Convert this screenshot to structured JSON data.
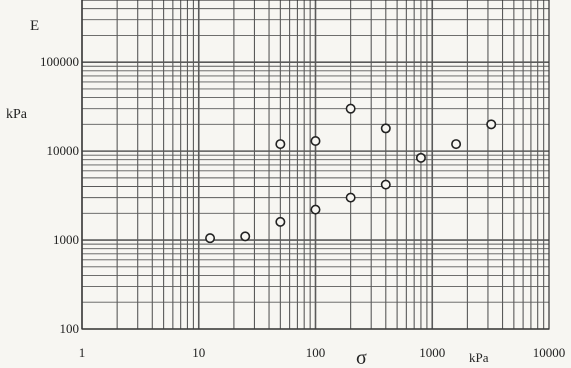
{
  "chart_data": {
    "type": "scatter",
    "title": "",
    "ylabel": "E",
    "ylabel_unit": "kPa",
    "xlabel": "σ",
    "xlabel_unit": "kPa",
    "x_scale": "log",
    "y_scale": "log",
    "xlim": [
      1,
      10000
    ],
    "ylim": [
      100,
      500000
    ],
    "x_ticks": [
      {
        "value": 1,
        "label": "1"
      },
      {
        "value": 10,
        "label": "10"
      },
      {
        "value": 100,
        "label": "100"
      },
      {
        "value": 1000,
        "label": "1000"
      },
      {
        "value": 10000,
        "label": "10000"
      }
    ],
    "y_ticks": [
      {
        "value": 100,
        "label": "100"
      },
      {
        "value": 1000,
        "label": "1000"
      },
      {
        "value": 10000,
        "label": "10000"
      },
      {
        "value": 100000,
        "label": "100000"
      }
    ],
    "grid": true,
    "marker": "open-circle",
    "series": [
      {
        "points": [
          {
            "x": 12.5,
            "y": 1050
          },
          {
            "x": 25,
            "y": 1100
          },
          {
            "x": 50,
            "y": 1600
          },
          {
            "x": 50,
            "y": 12000
          },
          {
            "x": 100,
            "y": 2200
          },
          {
            "x": 100,
            "y": 13000
          },
          {
            "x": 200,
            "y": 3000
          },
          {
            "x": 200,
            "y": 30000
          },
          {
            "x": 400,
            "y": 4200
          },
          {
            "x": 400,
            "y": 18000
          },
          {
            "x": 800,
            "y": 8400
          },
          {
            "x": 1600,
            "y": 12000
          },
          {
            "x": 3200,
            "y": 20000
          }
        ]
      }
    ]
  },
  "colors": {
    "background": "#f7f6f2",
    "grid": "#5a5a5a",
    "marker": "#222222"
  }
}
